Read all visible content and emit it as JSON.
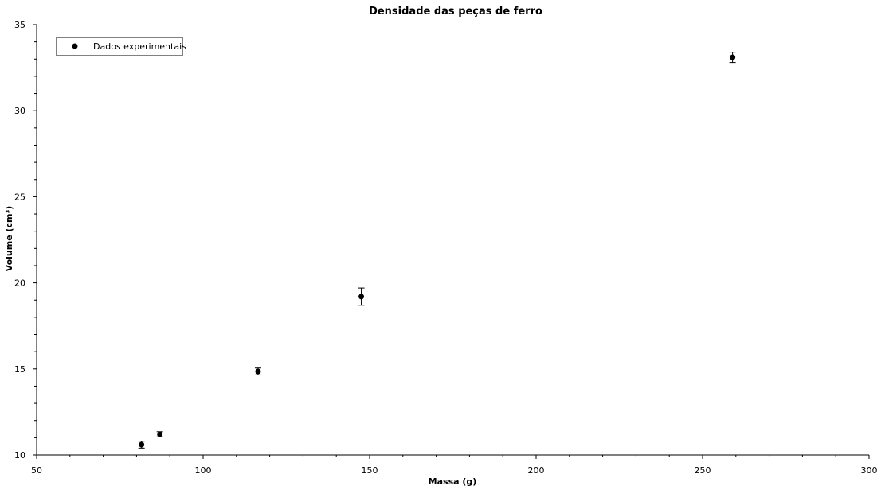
{
  "chart_data": {
    "type": "scatter",
    "title": "Densidade das peças de ferro",
    "xlabel": "Massa (g)",
    "ylabel": "Volume (cm³)",
    "xlim": [
      50,
      300
    ],
    "ylim": [
      10,
      35
    ],
    "x_major_ticks": [
      50,
      100,
      150,
      200,
      250,
      300
    ],
    "x_minor_ticks": [
      60,
      70,
      80,
      90,
      110,
      120,
      130,
      140,
      160,
      170,
      180,
      190,
      210,
      220,
      230,
      240,
      260,
      270,
      280,
      290
    ],
    "y_major_ticks": [
      10,
      15,
      20,
      25,
      30,
      35
    ],
    "y_minor_ticks": [
      11,
      12,
      13,
      14,
      16,
      17,
      18,
      19,
      21,
      22,
      23,
      24,
      26,
      27,
      28,
      29,
      31,
      32,
      33,
      34
    ],
    "grid": false,
    "legend_position": "top-left",
    "series": [
      {
        "name": "Dados experimentais",
        "marker": "circle",
        "color": "#000000",
        "points": [
          {
            "x": 81.5,
            "y": 10.6,
            "yerr": 0.2
          },
          {
            "x": 87.0,
            "y": 11.2,
            "yerr": 0.15
          },
          {
            "x": 116.5,
            "y": 14.85,
            "yerr": 0.2
          },
          {
            "x": 147.5,
            "y": 19.2,
            "yerr": 0.5
          },
          {
            "x": 259.0,
            "y": 33.1,
            "yerr": 0.3
          }
        ]
      }
    ]
  }
}
